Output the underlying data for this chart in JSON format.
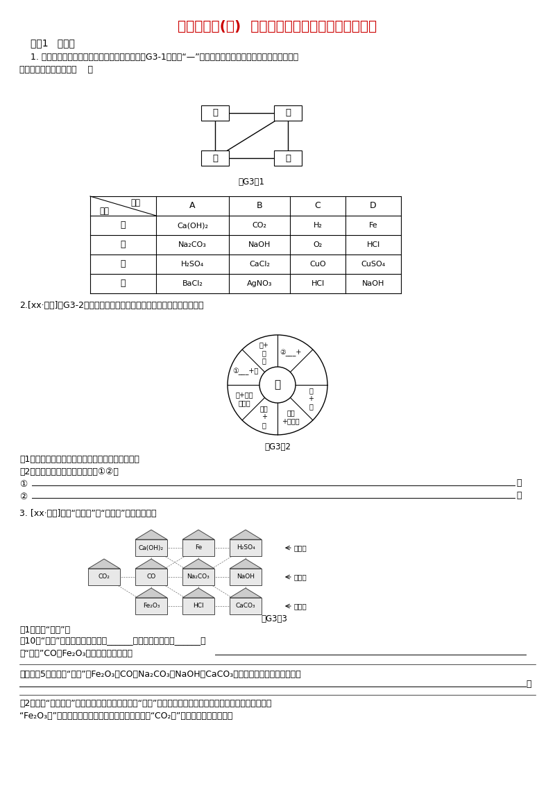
{
  "title": "滚动小专题(三)  单质、氧化物、酸硨盐的相互转化",
  "title_color": "#CC0000",
  "bg_color": "#ffffff",
  "section1_label": "类型1   连线型",
  "q1_text1": "1. 甲、乙、丙、丁四种物质的相互反应关系如图G3-1所示（“—”表示相连的物质间能发生反应）。下列符合",
  "q1_text2": "对应反应关系的选项是（    ）",
  "fig_g31_label": "图G3－1",
  "fig_g32_label": "图G3－2",
  "fig_g33_label": "图G3－3",
  "q2_text": "2.[xx·资阳]图G3-2中各组物质（或溶液）反应均可生成盐（中心圈）。",
  "q2_sub1": "（1）分析图中信息，填写相应的文字，完善该图。",
  "q2_sub2": "（2）列举相应的化学方程式说明①②：",
  "q3_text": "3. [xx·北京]走进“化学村”。“化学村”的布局如下：",
  "q3_sub1": "（1）认识“居民”。",
  "q3_sub1a": "\u000110户“居民”中，俗称熟石灿的是______，属于氧化物的有______。",
  "q3_sub1b": "\u0001“居民”CO与Fe₂O₃反应的化学方程式为",
  "q3_sub2_text": "\u0001盐酸有5户相邻的“居民”：Fe₂O₃、CO、Na₂CO₃、NaOH、CaCO₃，其中不能与它发生反应的是",
  "q3_sub3_text1": "（2）认识“村中的路”。只有相邻且能相互反应的“居民”间才是通路。例如，图中涂成黑色实线的是一条从",
  "q3_sub3_text2": "“Fe₂O₃家”到达出入口的路。请你在图中涂出一条从“CO₂家”到达任一出入口的路。"
}
